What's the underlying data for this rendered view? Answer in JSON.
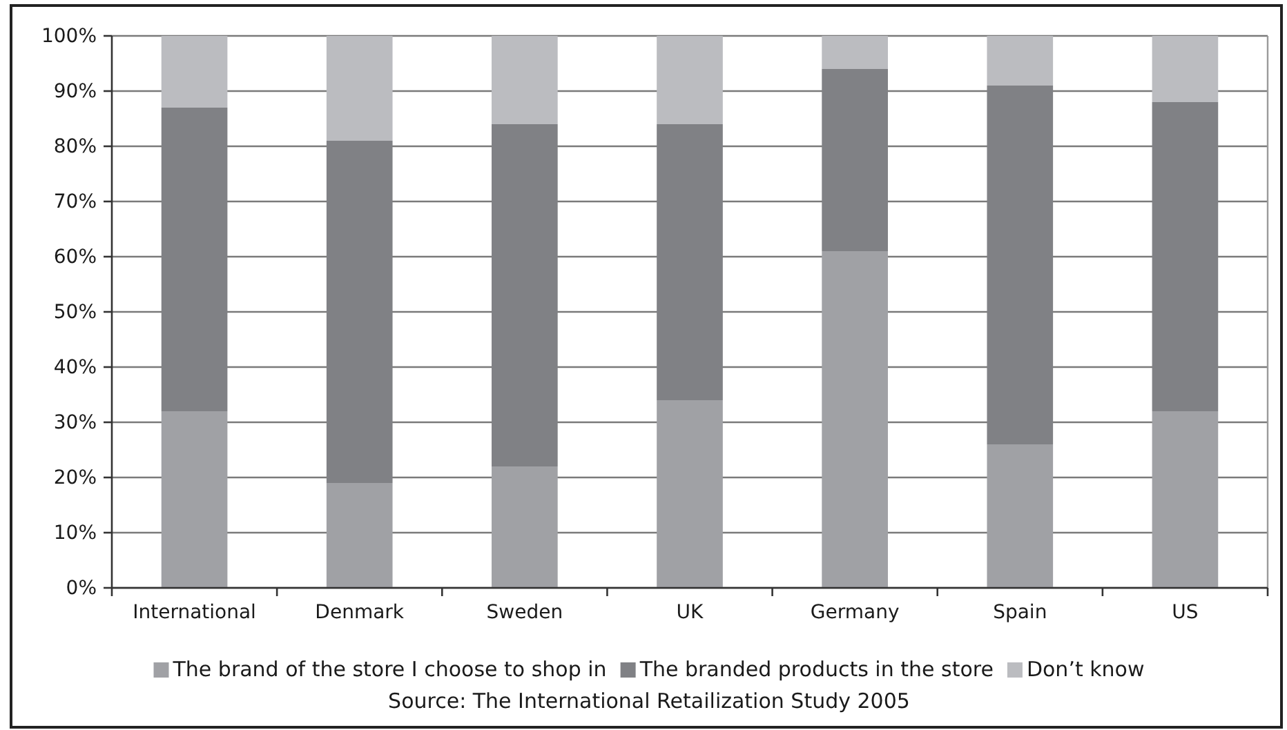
{
  "chart_data": {
    "type": "bar",
    "stacked": true,
    "categories": [
      "International",
      "Denmark",
      "Sweden",
      "UK",
      "Germany",
      "Spain",
      "US"
    ],
    "series": [
      {
        "name": "The brand of the store I choose to shop in",
        "color": "#a0a1a5",
        "values": [
          32,
          19,
          22,
          34,
          61,
          26,
          32
        ]
      },
      {
        "name": "The branded products in the store",
        "color": "#808185",
        "values": [
          55,
          62,
          62,
          50,
          33,
          65,
          56
        ]
      },
      {
        "name": "Don’t know",
        "color": "#bbbcc0",
        "values": [
          13,
          19,
          16,
          16,
          6,
          9,
          12
        ]
      }
    ],
    "ylim": [
      0,
      100
    ],
    "yticks": [
      {
        "value": 0,
        "label": "0%"
      },
      {
        "value": 10,
        "label": "10%"
      },
      {
        "value": 20,
        "label": "20%"
      },
      {
        "value": 30,
        "label": "30%"
      },
      {
        "value": 40,
        "label": "40%"
      },
      {
        "value": 50,
        "label": "50%"
      },
      {
        "value": 60,
        "label": "60%"
      },
      {
        "value": 70,
        "label": "70%"
      },
      {
        "value": 80,
        "label": "80%"
      },
      {
        "value": 90,
        "label": "90%"
      },
      {
        "value": 100,
        "label": "100%"
      }
    ],
    "grid": "y",
    "legend": "bottom",
    "annotations": [
      "Source: The International Retailization Study 2005"
    ]
  }
}
